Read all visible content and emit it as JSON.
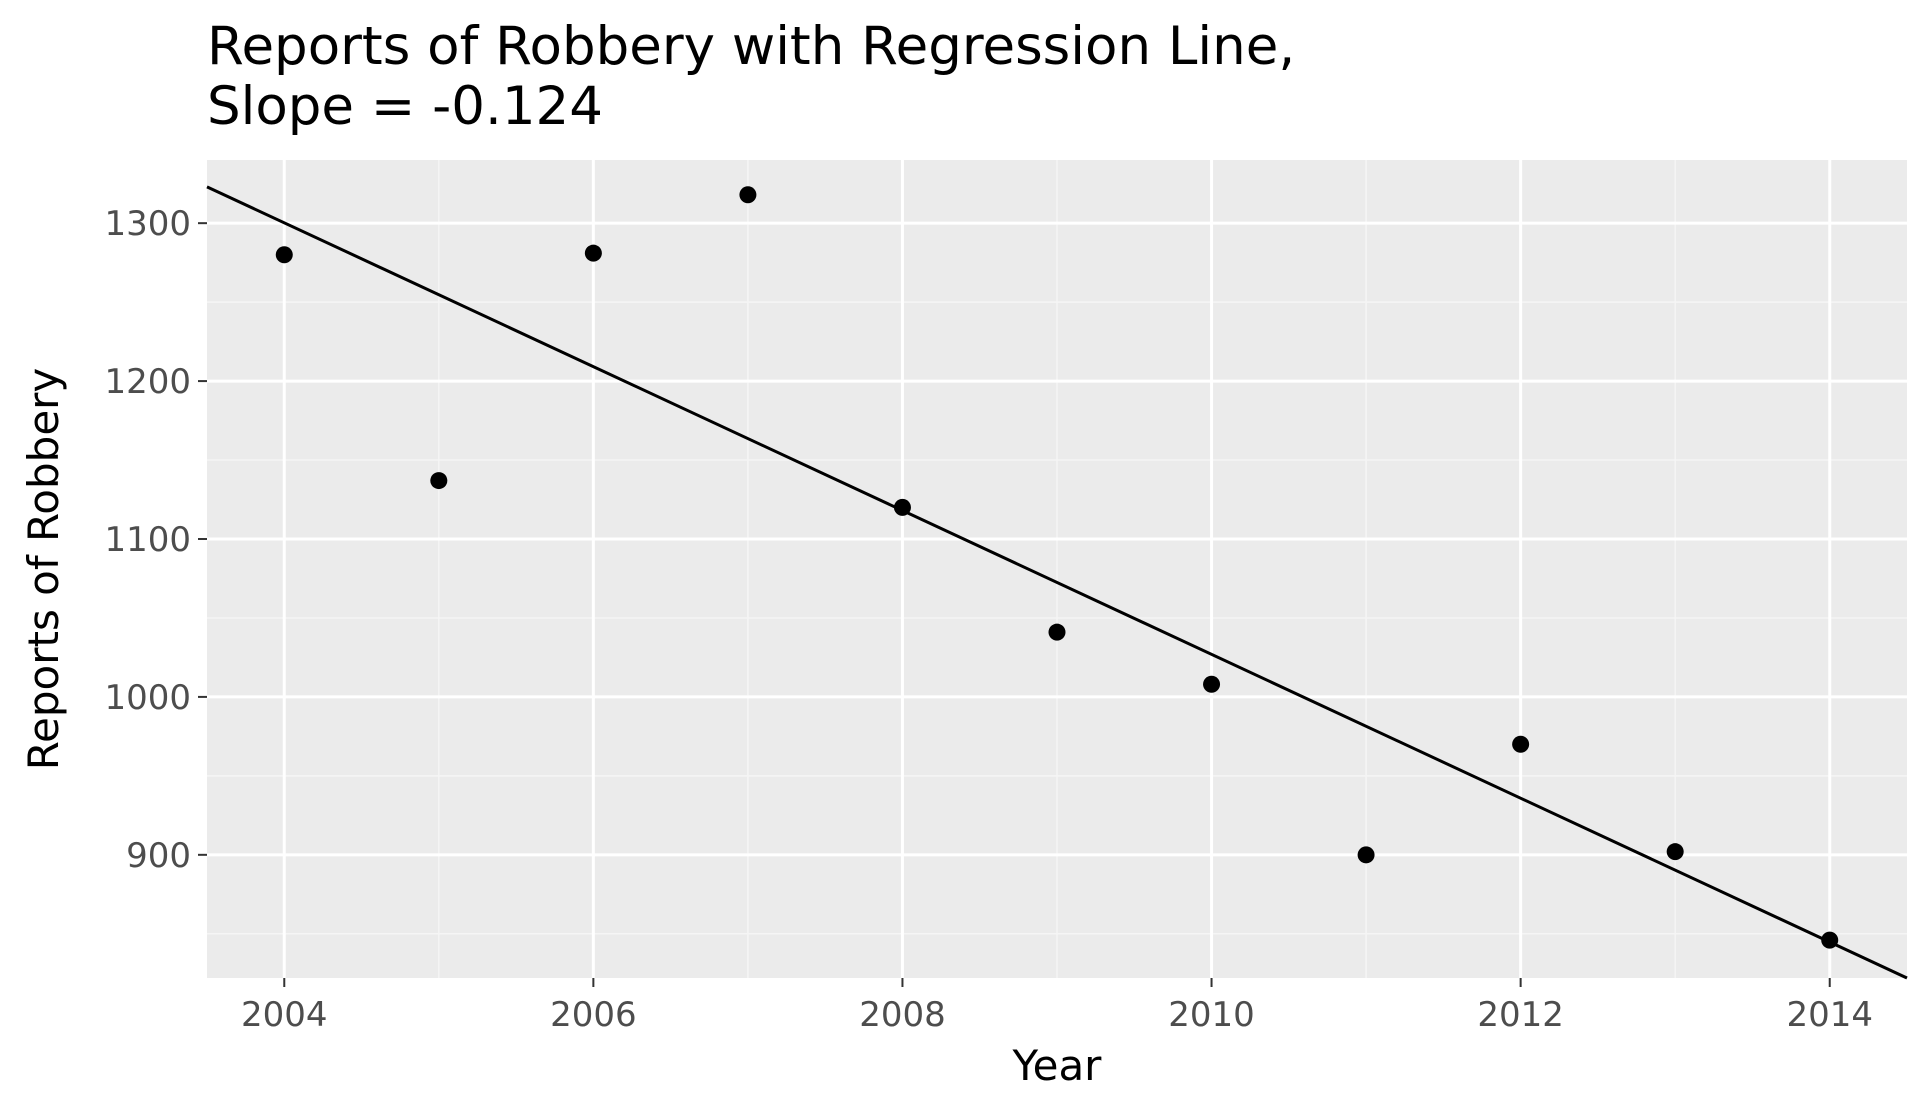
{
  "chart_data": {
    "type": "scatter",
    "title_lines": [
      "Reports of Robbery with Regression Line,",
      "Slope = -0.124"
    ],
    "xlabel": "Year",
    "ylabel": "Reports of Robbery",
    "x_ticks": [
      2004,
      2006,
      2008,
      2010,
      2012,
      2014
    ],
    "x_tick_labels": [
      "2004",
      "2006",
      "2008",
      "2010",
      "2012",
      "2014"
    ],
    "y_ticks": [
      900,
      1000,
      1100,
      1200,
      1300
    ],
    "y_tick_labels": [
      "900",
      "1000",
      "1100",
      "1200",
      "1300"
    ],
    "xlim": [
      2003.5,
      2014.5
    ],
    "ylim": [
      822,
      1340
    ],
    "grid": true,
    "legend": "none",
    "points": [
      {
        "x": 2004,
        "y": 1280
      },
      {
        "x": 2005,
        "y": 1137
      },
      {
        "x": 2006,
        "y": 1281
      },
      {
        "x": 2007,
        "y": 1318
      },
      {
        "x": 2008,
        "y": 1120
      },
      {
        "x": 2009,
        "y": 1041
      },
      {
        "x": 2010,
        "y": 1008
      },
      {
        "x": 2011,
        "y": 900
      },
      {
        "x": 2012,
        "y": 970
      },
      {
        "x": 2013,
        "y": 902
      },
      {
        "x": 2014,
        "y": 846
      }
    ],
    "regression_line": {
      "slope_label": "-0.124",
      "from": {
        "x": 2003.5,
        "y": 1323
      },
      "to": {
        "x": 2014.5,
        "y": 822
      }
    },
    "colors": {
      "panel_background": "#ebebeb",
      "grid_major": "#ffffff",
      "grid_minor": "#f5f5f5",
      "points": "#000000",
      "line": "#000000",
      "tick_text": "#4d4d4d"
    }
  }
}
